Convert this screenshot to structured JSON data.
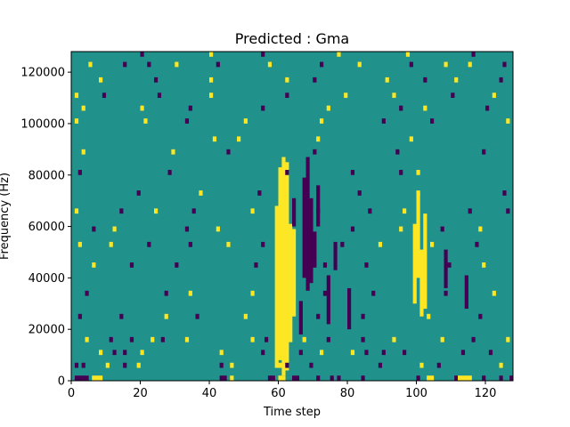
{
  "chart_data": {
    "type": "heatmap",
    "title": "Predicted : Gma",
    "xlabel": "Time step",
    "ylabel": "Frequency (Hz)",
    "xlim": [
      0,
      128
    ],
    "ylim": [
      0,
      128000
    ],
    "xticks": [
      0,
      20,
      40,
      60,
      80,
      100,
      120
    ],
    "yticks": [
      0,
      20000,
      40000,
      60000,
      80000,
      100000,
      120000
    ],
    "xtick_labels": [
      "0",
      "20",
      "40",
      "60",
      "80",
      "100",
      "120"
    ],
    "ytick_labels": [
      "0",
      "20000",
      "40000",
      "60000",
      "80000",
      "100000",
      "120000"
    ],
    "grid": false,
    "colormap": "viridis",
    "color_levels": {
      "low": "#440154",
      "mid": "#21918c",
      "high": "#fde725"
    },
    "background_level": "mid",
    "cells": [
      {
        "t": 1,
        "f": 0,
        "v": "low"
      },
      {
        "t": 2,
        "f": 0,
        "v": "low"
      },
      {
        "t": 3,
        "f": 0,
        "v": "low"
      },
      {
        "t": 4,
        "f": 0,
        "v": "low"
      },
      {
        "t": 6,
        "f": 0,
        "v": "high"
      },
      {
        "t": 7,
        "f": 0,
        "v": "high"
      },
      {
        "t": 8,
        "f": 0,
        "v": "high"
      },
      {
        "t": 43,
        "f": 0,
        "v": "low"
      },
      {
        "t": 44,
        "f": 0,
        "v": "low"
      },
      {
        "t": 46,
        "f": 0,
        "v": "high"
      },
      {
        "t": 57,
        "f": 0,
        "v": "low"
      },
      {
        "t": 58,
        "f": 0,
        "v": "low"
      },
      {
        "t": 60,
        "f": 0,
        "v": "high"
      },
      {
        "t": 61,
        "f": 0,
        "v": "high"
      },
      {
        "t": 64,
        "f": 0,
        "v": "low"
      },
      {
        "t": 65,
        "f": 0,
        "v": "low"
      },
      {
        "t": 71,
        "f": 0,
        "v": "low"
      },
      {
        "t": 75,
        "f": 0,
        "v": "low"
      },
      {
        "t": 77,
        "f": 0,
        "v": "low"
      },
      {
        "t": 84,
        "f": 0,
        "v": "low"
      },
      {
        "t": 100,
        "f": 0,
        "v": "low"
      },
      {
        "t": 103,
        "f": 0,
        "v": "high"
      },
      {
        "t": 104,
        "f": 0,
        "v": "high"
      },
      {
        "t": 111,
        "f": 0,
        "v": "low"
      },
      {
        "t": 112,
        "f": 0,
        "v": "high"
      },
      {
        "t": 113,
        "f": 0,
        "v": "high"
      },
      {
        "t": 114,
        "f": 0,
        "v": "high"
      },
      {
        "t": 115,
        "f": 0,
        "v": "high"
      },
      {
        "t": 119,
        "f": 0,
        "v": "low"
      },
      {
        "t": 124,
        "f": 0,
        "v": "low"
      },
      {
        "t": 127,
        "f": 0,
        "v": "low"
      },
      {
        "t": 1,
        "f": 5,
        "v": "low"
      },
      {
        "t": 3,
        "f": 5,
        "v": "low"
      },
      {
        "t": 10,
        "f": 5,
        "v": "high"
      },
      {
        "t": 15,
        "f": 5,
        "v": "low"
      },
      {
        "t": 19,
        "f": 5,
        "v": "high"
      },
      {
        "t": 43,
        "f": 5,
        "v": "low"
      },
      {
        "t": 46,
        "f": 5,
        "v": "high"
      },
      {
        "t": 60,
        "f": 5,
        "v": "high"
      },
      {
        "t": 62,
        "f": 5,
        "v": "low"
      },
      {
        "t": 69,
        "f": 5,
        "v": "low"
      },
      {
        "t": 89,
        "f": 5,
        "v": "low"
      },
      {
        "t": 101,
        "f": 5,
        "v": "high"
      },
      {
        "t": 106,
        "f": 5,
        "v": "low"
      },
      {
        "t": 124,
        "f": 5,
        "v": "high"
      },
      {
        "t": 8,
        "f": 10,
        "v": "high"
      },
      {
        "t": 12,
        "f": 10,
        "v": "low"
      },
      {
        "t": 15,
        "f": 10,
        "v": "low"
      },
      {
        "t": 20,
        "f": 10,
        "v": "high"
      },
      {
        "t": 43,
        "f": 10,
        "v": "high"
      },
      {
        "t": 55,
        "f": 10,
        "v": "low"
      },
      {
        "t": 66,
        "f": 10,
        "v": "low"
      },
      {
        "t": 72,
        "f": 10,
        "v": "high"
      },
      {
        "t": 81,
        "f": 10,
        "v": "high"
      },
      {
        "t": 85,
        "f": 10,
        "v": "low"
      },
      {
        "t": 90,
        "f": 10,
        "v": "low"
      },
      {
        "t": 96,
        "f": 10,
        "v": "low"
      },
      {
        "t": 113,
        "f": 10,
        "v": "low"
      },
      {
        "t": 121,
        "f": 10,
        "v": "low"
      },
      {
        "t": 4,
        "f": 15,
        "v": "high"
      },
      {
        "t": 11,
        "f": 15,
        "v": "low"
      },
      {
        "t": 17,
        "f": 15,
        "v": "low"
      },
      {
        "t": 23,
        "f": 15,
        "v": "high"
      },
      {
        "t": 26,
        "f": 15,
        "v": "low"
      },
      {
        "t": 33,
        "f": 15,
        "v": "high"
      },
      {
        "t": 52,
        "f": 15,
        "v": "high"
      },
      {
        "t": 56,
        "f": 15,
        "v": "low"
      },
      {
        "t": 67,
        "f": 15,
        "v": "high"
      },
      {
        "t": 74,
        "f": 15,
        "v": "low"
      },
      {
        "t": 84,
        "f": 15,
        "v": "low"
      },
      {
        "t": 93,
        "f": 15,
        "v": "high"
      },
      {
        "t": 107,
        "f": 15,
        "v": "high"
      },
      {
        "t": 116,
        "f": 15,
        "v": "low"
      },
      {
        "t": 126,
        "f": 15,
        "v": "high"
      },
      {
        "t": 2,
        "f": 24,
        "v": "low"
      },
      {
        "t": 14,
        "f": 24,
        "v": "low"
      },
      {
        "t": 27,
        "f": 24,
        "v": "high"
      },
      {
        "t": 36,
        "f": 24,
        "v": "low"
      },
      {
        "t": 50,
        "f": 24,
        "v": "high"
      },
      {
        "t": 71,
        "f": 24,
        "v": "low"
      },
      {
        "t": 84,
        "f": 24,
        "v": "low"
      },
      {
        "t": 103,
        "f": 24,
        "v": "high"
      },
      {
        "t": 118,
        "f": 24,
        "v": "low"
      },
      {
        "t": 4,
        "f": 33,
        "v": "low"
      },
      {
        "t": 27,
        "f": 33,
        "v": "low"
      },
      {
        "t": 34,
        "f": 33,
        "v": "high"
      },
      {
        "t": 52,
        "f": 33,
        "v": "high"
      },
      {
        "t": 73,
        "f": 33,
        "v": "low"
      },
      {
        "t": 87,
        "f": 33,
        "v": "low"
      },
      {
        "t": 108,
        "f": 33,
        "v": "low"
      },
      {
        "t": 122,
        "f": 33,
        "v": "high"
      },
      {
        "t": 6,
        "f": 44,
        "v": "high"
      },
      {
        "t": 17,
        "f": 44,
        "v": "low"
      },
      {
        "t": 30,
        "f": 44,
        "v": "low"
      },
      {
        "t": 53,
        "f": 44,
        "v": "low"
      },
      {
        "t": 73,
        "f": 44,
        "v": "low"
      },
      {
        "t": 85,
        "f": 44,
        "v": "low"
      },
      {
        "t": 109,
        "f": 44,
        "v": "low"
      },
      {
        "t": 119,
        "f": 44,
        "v": "high"
      },
      {
        "t": 2,
        "f": 52,
        "v": "high"
      },
      {
        "t": 11,
        "f": 52,
        "v": "high"
      },
      {
        "t": 22,
        "f": 52,
        "v": "low"
      },
      {
        "t": 34,
        "f": 52,
        "v": "low"
      },
      {
        "t": 45,
        "f": 52,
        "v": "high"
      },
      {
        "t": 55,
        "f": 52,
        "v": "low"
      },
      {
        "t": 78,
        "f": 52,
        "v": "low"
      },
      {
        "t": 89,
        "f": 52,
        "v": "high"
      },
      {
        "t": 104,
        "f": 52,
        "v": "high"
      },
      {
        "t": 117,
        "f": 52,
        "v": "low"
      },
      {
        "t": 6,
        "f": 58,
        "v": "low"
      },
      {
        "t": 12,
        "f": 58,
        "v": "high"
      },
      {
        "t": 33,
        "f": 58,
        "v": "low"
      },
      {
        "t": 42,
        "f": 58,
        "v": "high"
      },
      {
        "t": 81,
        "f": 58,
        "v": "low"
      },
      {
        "t": 95,
        "f": 58,
        "v": "high"
      },
      {
        "t": 107,
        "f": 58,
        "v": "low"
      },
      {
        "t": 118,
        "f": 58,
        "v": "high"
      },
      {
        "t": 1,
        "f": 65,
        "v": "high"
      },
      {
        "t": 14,
        "f": 65,
        "v": "low"
      },
      {
        "t": 24,
        "f": 65,
        "v": "high"
      },
      {
        "t": 35,
        "f": 65,
        "v": "low"
      },
      {
        "t": 52,
        "f": 65,
        "v": "high"
      },
      {
        "t": 71,
        "f": 65,
        "v": "low"
      },
      {
        "t": 86,
        "f": 65,
        "v": "low"
      },
      {
        "t": 96,
        "f": 65,
        "v": "high"
      },
      {
        "t": 115,
        "f": 65,
        "v": "low"
      },
      {
        "t": 126,
        "f": 65,
        "v": "low"
      },
      {
        "t": 19,
        "f": 72,
        "v": "low"
      },
      {
        "t": 37,
        "f": 72,
        "v": "high"
      },
      {
        "t": 54,
        "f": 72,
        "v": "low"
      },
      {
        "t": 83,
        "f": 72,
        "v": "low"
      },
      {
        "t": 100,
        "f": 72,
        "v": "high"
      },
      {
        "t": 125,
        "f": 72,
        "v": "low"
      },
      {
        "t": 2,
        "f": 80,
        "v": "low"
      },
      {
        "t": 28,
        "f": 80,
        "v": "low"
      },
      {
        "t": 62,
        "f": 80,
        "v": "low"
      },
      {
        "t": 81,
        "f": 80,
        "v": "low"
      },
      {
        "t": 95,
        "f": 80,
        "v": "low"
      },
      {
        "t": 100,
        "f": 80,
        "v": "high"
      },
      {
        "t": 3,
        "f": 88,
        "v": "high"
      },
      {
        "t": 29,
        "f": 88,
        "v": "high"
      },
      {
        "t": 45,
        "f": 88,
        "v": "low"
      },
      {
        "t": 70,
        "f": 88,
        "v": "low"
      },
      {
        "t": 94,
        "f": 88,
        "v": "low"
      },
      {
        "t": 119,
        "f": 88,
        "v": "low"
      },
      {
        "t": 41,
        "f": 93,
        "v": "high"
      },
      {
        "t": 48,
        "f": 93,
        "v": "high"
      },
      {
        "t": 71,
        "f": 93,
        "v": "high"
      },
      {
        "t": 98,
        "f": 93,
        "v": "high"
      },
      {
        "t": 1,
        "f": 100,
        "v": "high"
      },
      {
        "t": 21,
        "f": 100,
        "v": "high"
      },
      {
        "t": 33,
        "f": 100,
        "v": "low"
      },
      {
        "t": 50,
        "f": 100,
        "v": "high"
      },
      {
        "t": 72,
        "f": 100,
        "v": "high"
      },
      {
        "t": 90,
        "f": 100,
        "v": "low"
      },
      {
        "t": 104,
        "f": 100,
        "v": "low"
      },
      {
        "t": 126,
        "f": 100,
        "v": "high"
      },
      {
        "t": 3,
        "f": 105,
        "v": "high"
      },
      {
        "t": 20,
        "f": 105,
        "v": "high"
      },
      {
        "t": 34,
        "f": 105,
        "v": "low"
      },
      {
        "t": 55,
        "f": 105,
        "v": "low"
      },
      {
        "t": 74,
        "f": 105,
        "v": "high"
      },
      {
        "t": 95,
        "f": 105,
        "v": "low"
      },
      {
        "t": 102,
        "f": 105,
        "v": "high"
      },
      {
        "t": 120,
        "f": 105,
        "v": "low"
      },
      {
        "t": 1,
        "f": 110,
        "v": "high"
      },
      {
        "t": 9,
        "f": 110,
        "v": "low"
      },
      {
        "t": 25,
        "f": 110,
        "v": "low"
      },
      {
        "t": 40,
        "f": 110,
        "v": "high"
      },
      {
        "t": 62,
        "f": 110,
        "v": "low"
      },
      {
        "t": 79,
        "f": 110,
        "v": "high"
      },
      {
        "t": 93,
        "f": 110,
        "v": "high"
      },
      {
        "t": 110,
        "f": 110,
        "v": "low"
      },
      {
        "t": 122,
        "f": 110,
        "v": "high"
      },
      {
        "t": 8,
        "f": 116,
        "v": "high"
      },
      {
        "t": 24,
        "f": 116,
        "v": "low"
      },
      {
        "t": 40,
        "f": 116,
        "v": "high"
      },
      {
        "t": 62,
        "f": 116,
        "v": "high"
      },
      {
        "t": 70,
        "f": 116,
        "v": "low"
      },
      {
        "t": 91,
        "f": 116,
        "v": "high"
      },
      {
        "t": 102,
        "f": 116,
        "v": "low"
      },
      {
        "t": 111,
        "f": 116,
        "v": "high"
      },
      {
        "t": 124,
        "f": 116,
        "v": "low"
      },
      {
        "t": 5,
        "f": 122,
        "v": "high"
      },
      {
        "t": 15,
        "f": 122,
        "v": "low"
      },
      {
        "t": 22,
        "f": 122,
        "v": "low"
      },
      {
        "t": 30,
        "f": 122,
        "v": "high"
      },
      {
        "t": 42,
        "f": 122,
        "v": "low"
      },
      {
        "t": 57,
        "f": 122,
        "v": "high"
      },
      {
        "t": 72,
        "f": 122,
        "v": "low"
      },
      {
        "t": 83,
        "f": 122,
        "v": "high"
      },
      {
        "t": 98,
        "f": 122,
        "v": "low"
      },
      {
        "t": 108,
        "f": 122,
        "v": "high"
      },
      {
        "t": 115,
        "f": 122,
        "v": "high"
      },
      {
        "t": 125,
        "f": 122,
        "v": "low"
      },
      {
        "t": 20,
        "f": 126,
        "v": "low"
      },
      {
        "t": 40,
        "f": 126,
        "v": "high"
      },
      {
        "t": 55,
        "f": 126,
        "v": "low"
      },
      {
        "t": 77,
        "f": 126,
        "v": "high"
      },
      {
        "t": 97,
        "f": 126,
        "v": "high"
      },
      {
        "t": 116,
        "f": 126,
        "v": "low"
      }
    ],
    "column_bands": [
      {
        "t": 59,
        "f0": 5,
        "f1": 67,
        "v": "high"
      },
      {
        "t": 60,
        "f0": 8,
        "f1": 82,
        "v": "high"
      },
      {
        "t": 61,
        "f0": 2,
        "f1": 86,
        "v": "high"
      },
      {
        "t": 62,
        "f0": 4,
        "f1": 84,
        "v": "high"
      },
      {
        "t": 63,
        "f0": 15,
        "f1": 60,
        "v": "high"
      },
      {
        "t": 64,
        "f0": 25,
        "f1": 58,
        "v": "high"
      },
      {
        "t": 64,
        "f0": 60,
        "f1": 70,
        "v": "low"
      },
      {
        "t": 66,
        "f0": 18,
        "f1": 30,
        "v": "low"
      },
      {
        "t": 67,
        "f0": 40,
        "f1": 78,
        "v": "low"
      },
      {
        "t": 68,
        "f0": 35,
        "f1": 86,
        "v": "low"
      },
      {
        "t": 69,
        "f0": 38,
        "f1": 70,
        "v": "low"
      },
      {
        "t": 70,
        "f0": 44,
        "f1": 57,
        "v": "low"
      },
      {
        "t": 71,
        "f0": 60,
        "f1": 75,
        "v": "low"
      },
      {
        "t": 74,
        "f0": 22,
        "f1": 40,
        "v": "low"
      },
      {
        "t": 76,
        "f0": 43,
        "f1": 53,
        "v": "low"
      },
      {
        "t": 80,
        "f0": 20,
        "f1": 35,
        "v": "low"
      },
      {
        "t": 99,
        "f0": 30,
        "f1": 60,
        "v": "high"
      },
      {
        "t": 100,
        "f0": 40,
        "f1": 72,
        "v": "high"
      },
      {
        "t": 101,
        "f0": 25,
        "f1": 50,
        "v": "high"
      },
      {
        "t": 102,
        "f0": 28,
        "f1": 64,
        "v": "high"
      },
      {
        "t": 108,
        "f0": 36,
        "f1": 50,
        "v": "low"
      },
      {
        "t": 114,
        "f0": 28,
        "f1": 40,
        "v": "low"
      }
    ]
  }
}
